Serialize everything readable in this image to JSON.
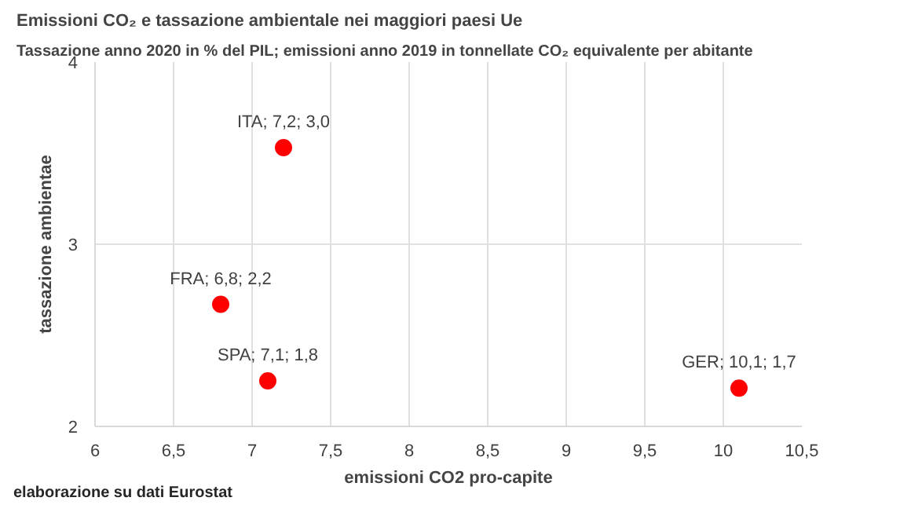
{
  "chart_data": {
    "type": "scatter",
    "title": "Emissioni CO₂ e tassazione ambientale nei maggiori paesi Ue",
    "subtitle": "Tassazione anno 2020 in % del PIL; emissioni anno 2019 in tonnellate CO₂ equivalente per abitante",
    "xlabel": "emissioni CO2 pro-capite",
    "ylabel": "tassazione ambientae",
    "annotations": [
      "elaborazione su dati Eurostat"
    ],
    "series": [
      {
        "color": "#ff0000",
        "x": [
          7.2,
          6.8,
          7.1,
          10.1
        ],
        "values": [
          3.53,
          2.67,
          2.25,
          2.21
        ],
        "value_labels": [
          "ITA; 7,2; 3,0",
          "FRA; 6,8; 2,2",
          "SPA; 7,1; 1,8",
          "GER; 10,1; 1,7"
        ]
      }
    ],
    "xlim": [
      6,
      10.5
    ],
    "xticks": [
      6,
      {
        "value": 6.5,
        "label": "6,5"
      },
      7,
      {
        "value": 7.5,
        "label": "7,5"
      },
      8,
      {
        "value": 8.5,
        "label": "8,5"
      },
      9,
      {
        "value": 9.5,
        "label": "9,5"
      },
      10,
      {
        "value": 10.5,
        "label": "10,5"
      }
    ],
    "ylim": [
      2,
      4
    ],
    "yticks": [
      2,
      3,
      4
    ],
    "grid": true,
    "marker": "circle"
  }
}
